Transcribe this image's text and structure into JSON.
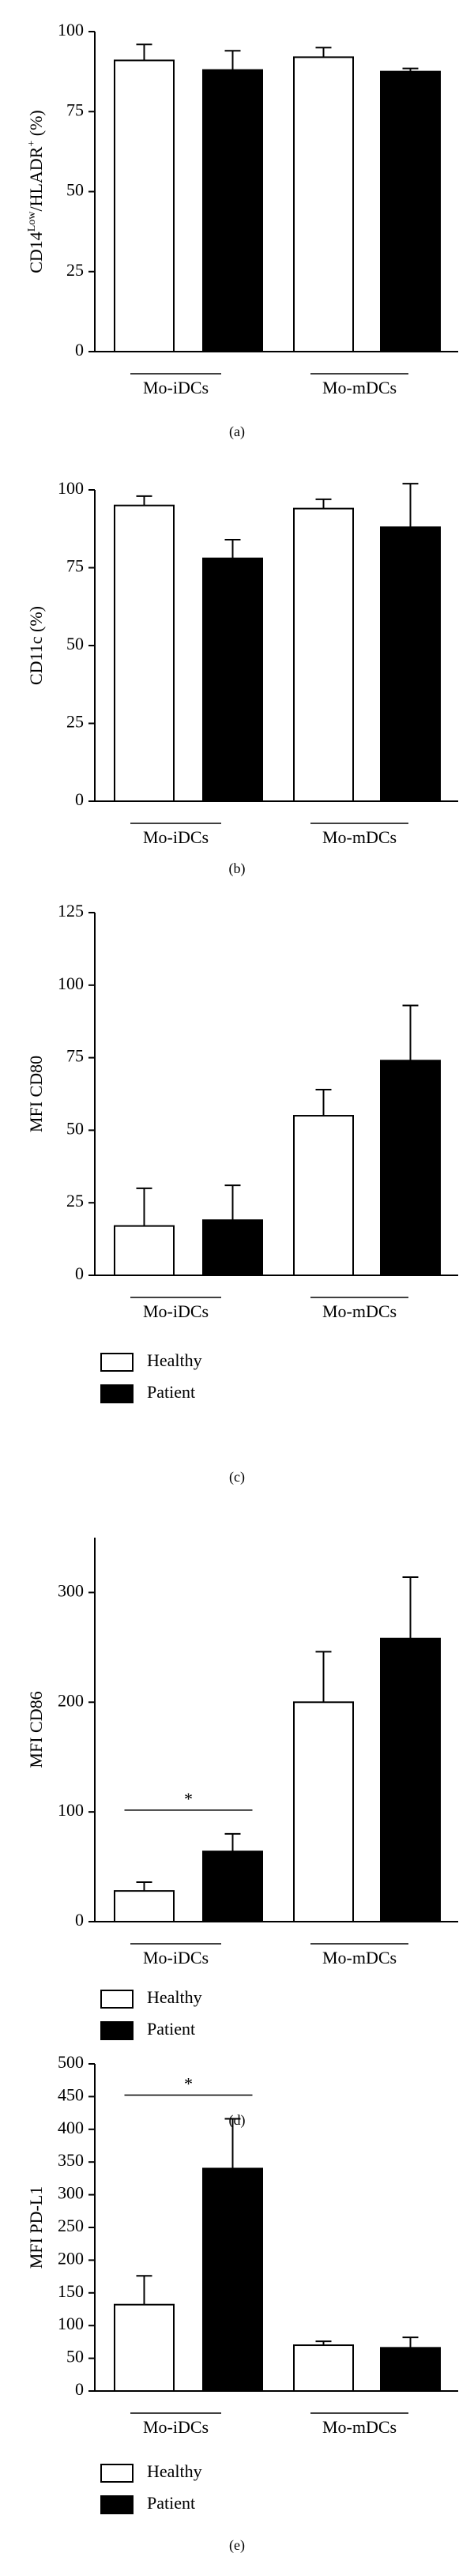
{
  "chart_data": [
    {
      "type": "bar",
      "caption": "(a)",
      "ylabel": [
        {
          "text": "CD14"
        },
        {
          "text": "Low",
          "superscript": true
        },
        {
          "text": "/HLADR"
        },
        {
          "text": "+",
          "superscript": true
        },
        {
          "text": " (%)"
        }
      ],
      "categories": [
        "Mo-iDCs",
        "Mo-mDCs"
      ],
      "series": [
        {
          "color": "#ffffff",
          "values": [
            91,
            92
          ],
          "errors": [
            5,
            3
          ]
        },
        {
          "color": "#000000",
          "values": [
            88,
            87.5
          ],
          "errors": [
            6,
            1
          ]
        }
      ],
      "ylim": [
        0,
        100
      ],
      "yticks": [
        0,
        25,
        50,
        75,
        100
      ]
    },
    {
      "type": "bar",
      "caption": "(b)",
      "ylabel": [
        {
          "text": "CD11c (%)"
        }
      ],
      "categories": [
        "Mo-iDCs",
        "Mo-mDCs"
      ],
      "series": [
        {
          "color": "#ffffff",
          "values": [
            95,
            94
          ],
          "errors": [
            3,
            3
          ]
        },
        {
          "color": "#000000",
          "values": [
            78,
            88
          ],
          "errors": [
            6,
            14
          ]
        }
      ],
      "ylim": [
        0,
        100
      ],
      "yticks": [
        0,
        25,
        50,
        75,
        100
      ]
    },
    {
      "type": "bar",
      "caption": "(c)",
      "ylabel": [
        {
          "text": "MFI CD80"
        }
      ],
      "categories": [
        "Mo-iDCs",
        "Mo-mDCs"
      ],
      "series": [
        {
          "name": "Healthy",
          "color": "#ffffff",
          "values": [
            17,
            55
          ],
          "errors": [
            13,
            9
          ]
        },
        {
          "name": "Patient",
          "color": "#000000",
          "values": [
            19,
            74
          ],
          "errors": [
            12,
            19
          ]
        }
      ],
      "ylim": [
        0,
        125
      ],
      "yticks": [
        0,
        25,
        50,
        75,
        100,
        125
      ],
      "legend": "bottom-left"
    },
    {
      "type": "bar",
      "caption": "(d)",
      "ylabel": [
        {
          "text": "MFI CD86"
        }
      ],
      "categories": [
        "Mo-iDCs",
        "Mo-mDCs"
      ],
      "series": [
        {
          "name": "Healthy",
          "color": "#ffffff",
          "values": [
            28,
            200
          ],
          "errors": [
            8,
            46
          ]
        },
        {
          "name": "Patient",
          "color": "#000000",
          "values": [
            64,
            258
          ],
          "errors": [
            16,
            56
          ]
        }
      ],
      "ylim": [
        0,
        350
      ],
      "yticks": [
        0,
        100,
        200,
        300
      ],
      "legend": "bottom-left",
      "significance": [
        {
          "label": "*",
          "category": "Mo-iDCs"
        }
      ]
    },
    {
      "type": "bar",
      "caption": "(e)",
      "ylabel": [
        {
          "text": "MFI PD-L1"
        }
      ],
      "categories": [
        "Mo-iDCs",
        "Mo-mDCs"
      ],
      "series": [
        {
          "name": "Healthy",
          "color": "#ffffff",
          "values": [
            132,
            70
          ],
          "errors": [
            44,
            6
          ]
        },
        {
          "name": "Patient",
          "color": "#000000",
          "values": [
            340,
            66
          ],
          "errors": [
            76,
            16
          ]
        }
      ],
      "ylim": [
        0,
        500
      ],
      "yticks": [
        0,
        50,
        100,
        150,
        200,
        250,
        300,
        350,
        400,
        450,
        500
      ],
      "legend": "bottom-left",
      "significance": [
        {
          "label": "*",
          "category": "Mo-iDCs"
        }
      ]
    }
  ]
}
